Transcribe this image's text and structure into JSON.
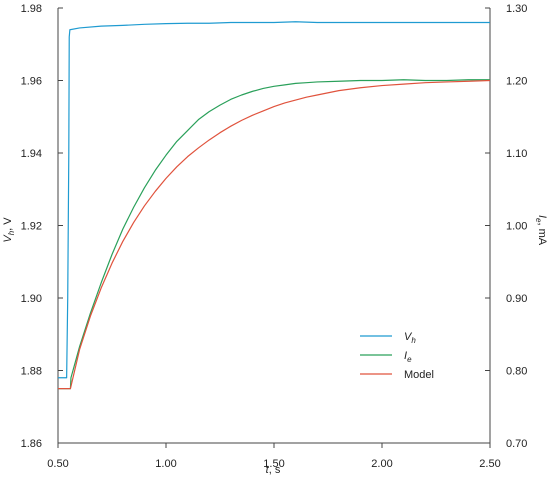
{
  "chart_data": {
    "type": "line",
    "title": "",
    "xlabel_var": "t",
    "xlabel_unit": ", s",
    "ylabel_left_var": "V",
    "ylabel_left_sub": "h",
    "ylabel_left_unit": ", V",
    "ylabel_right_var": "I",
    "ylabel_right_sub": "e",
    "ylabel_right_unit": ", mA",
    "xlim": [
      0.5,
      2.5
    ],
    "ylim_left": [
      1.86,
      1.98
    ],
    "ylim_right": [
      0.7,
      1.3
    ],
    "x_ticks": [
      "0.50",
      "1.00",
      "1.50",
      "2.00",
      "2.50"
    ],
    "y_left_ticks": [
      "1.86",
      "1.88",
      "1.90",
      "1.92",
      "1.94",
      "1.96",
      "1.98"
    ],
    "y_right_ticks": [
      "0.70",
      "0.80",
      "0.90",
      "1.00",
      "1.10",
      "1.20",
      "1.30"
    ],
    "grid": false,
    "legend_position": "lower-right",
    "series": [
      {
        "name_var": "V",
        "name_sub": "h",
        "axis": "left",
        "color": "#1f9bd1",
        "x": [
          0.5,
          0.53,
          0.54,
          0.545,
          0.55,
          0.552,
          0.555,
          0.6,
          0.7,
          0.8,
          0.9,
          1.0,
          1.1,
          1.2,
          1.3,
          1.4,
          1.5,
          1.6,
          1.7,
          1.8,
          1.9,
          2.0,
          2.1,
          2.2,
          2.3,
          2.4,
          2.5
        ],
        "y": [
          1.878,
          1.878,
          1.878,
          1.9,
          1.94,
          1.972,
          1.974,
          1.9745,
          1.975,
          1.9752,
          1.9755,
          1.9757,
          1.9758,
          1.9758,
          1.976,
          1.976,
          1.976,
          1.9762,
          1.976,
          1.976,
          1.976,
          1.976,
          1.976,
          1.976,
          1.976,
          1.976,
          1.976
        ]
      },
      {
        "name_var": "I",
        "name_sub": "e",
        "axis": "right",
        "color": "#2aa05a",
        "x": [
          0.5,
          0.5575,
          0.56,
          0.6,
          0.65,
          0.7,
          0.75,
          0.8,
          0.85,
          0.9,
          0.95,
          1.0,
          1.05,
          1.1,
          1.15,
          1.2,
          1.25,
          1.3,
          1.35,
          1.4,
          1.45,
          1.5,
          1.55,
          1.6,
          1.65,
          1.7,
          1.8,
          1.9,
          2.0,
          2.1,
          2.2,
          2.3,
          2.4,
          2.5
        ],
        "y": [
          0.775,
          0.775,
          0.79,
          0.833,
          0.879,
          0.921,
          0.96,
          0.995,
          1.025,
          1.052,
          1.076,
          1.097,
          1.116,
          1.131,
          1.146,
          1.157,
          1.166,
          1.174,
          1.18,
          1.185,
          1.189,
          1.192,
          1.194,
          1.196,
          1.197,
          1.198,
          1.199,
          1.2,
          1.2,
          1.201,
          1.2,
          1.2,
          1.201,
          1.201
        ]
      },
      {
        "name": "Model",
        "axis": "right",
        "color": "#e0533d",
        "x": [
          0.5,
          0.5575,
          0.6,
          0.65,
          0.7,
          0.75,
          0.8,
          0.85,
          0.9,
          0.95,
          1.0,
          1.05,
          1.1,
          1.15,
          1.2,
          1.25,
          1.3,
          1.35,
          1.4,
          1.45,
          1.5,
          1.55,
          1.6,
          1.65,
          1.7,
          1.8,
          1.9,
          2.0,
          2.1,
          2.2,
          2.3,
          2.4,
          2.5
        ],
        "y": [
          0.775,
          0.775,
          0.829,
          0.875,
          0.914,
          0.948,
          0.978,
          1.004,
          1.027,
          1.047,
          1.065,
          1.081,
          1.095,
          1.107,
          1.118,
          1.128,
          1.137,
          1.145,
          1.152,
          1.158,
          1.164,
          1.169,
          1.173,
          1.177,
          1.18,
          1.186,
          1.19,
          1.193,
          1.195,
          1.197,
          1.198,
          1.199,
          1.2
        ]
      }
    ]
  }
}
